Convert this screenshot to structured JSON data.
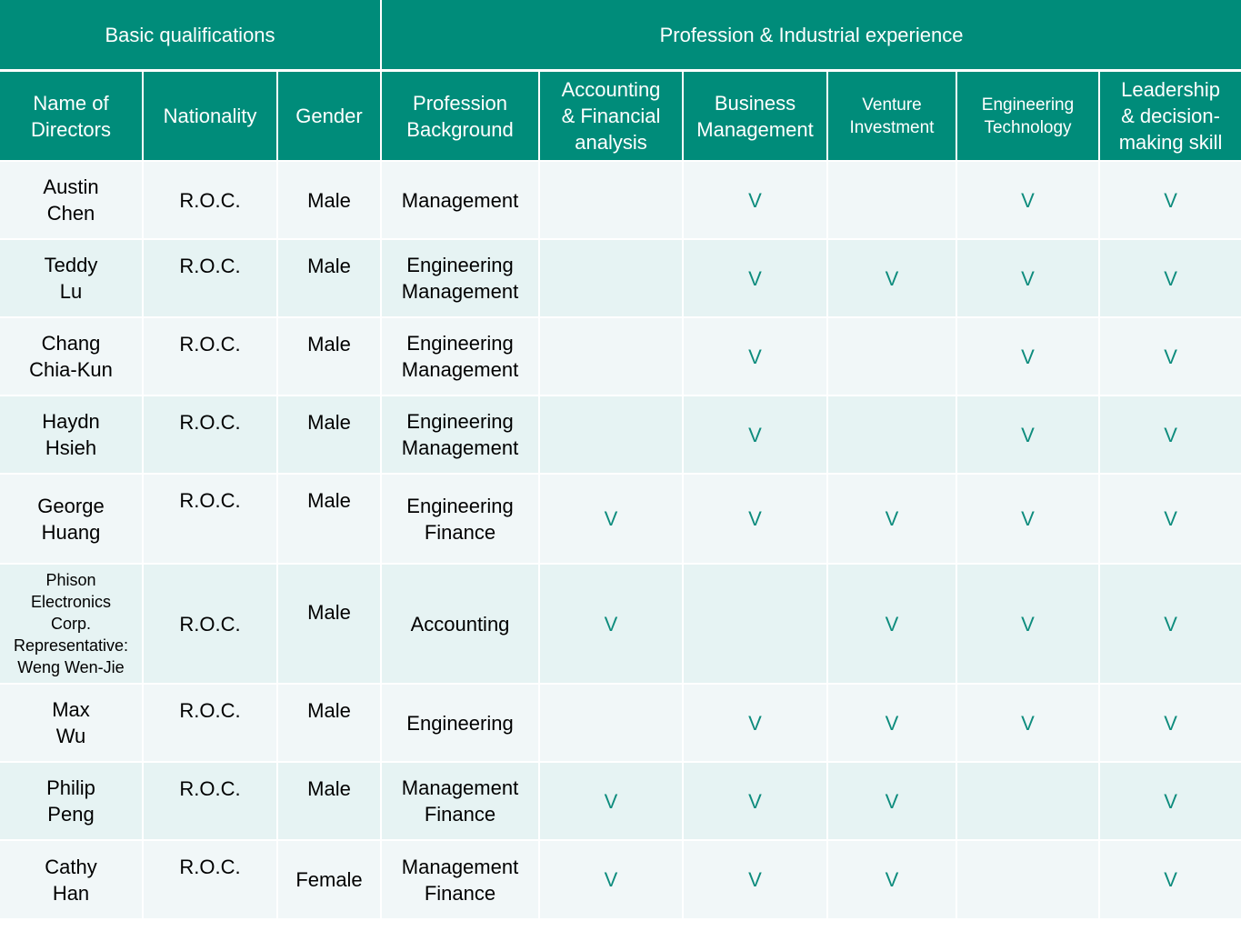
{
  "header": {
    "group_basic": "Basic qualifications",
    "group_profession": "Profession & Industrial experience",
    "columns": [
      "Name of\nDirectors",
      "Nationality",
      "Gender",
      "Profession\nBackground",
      "Accounting\n& Financial\nanalysis",
      "Business\nManagement",
      "Venture\nInvestment",
      "Engineering\nTechnology",
      "Leadership\n& decision-\nmaking skill"
    ]
  },
  "check_mark": "V",
  "rows": [
    {
      "name": "Austin\nChen",
      "nationality": "R.O.C.",
      "gender": "Male",
      "background": "Management",
      "accounting": "",
      "business": "V",
      "venture": "",
      "engineering": "V",
      "leadership": "V"
    },
    {
      "name": "Teddy\nLu",
      "nationality": "R.O.C.",
      "gender": "Male",
      "background": "Engineering\nManagement",
      "accounting": "",
      "business": "V",
      "venture": "V",
      "engineering": "V",
      "leadership": "V"
    },
    {
      "name": "Chang\nChia-Kun",
      "nationality": "R.O.C.",
      "gender": "Male",
      "background": "Engineering\nManagement",
      "accounting": "",
      "business": "V",
      "venture": "",
      "engineering": "V",
      "leadership": "V"
    },
    {
      "name": "Haydn\nHsieh",
      "nationality": "R.O.C.",
      "gender": "Male",
      "background": "Engineering\nManagement",
      "accounting": "",
      "business": "V",
      "venture": "",
      "engineering": "V",
      "leadership": "V"
    },
    {
      "name": "George\nHuang",
      "nationality": "R.O.C.",
      "gender": "Male",
      "background": "Engineering\nFinance",
      "accounting": "V",
      "business": "V",
      "venture": "V",
      "engineering": "V",
      "leadership": "V"
    },
    {
      "name": "Phison\nElectronics\nCorp.\nRepresentative:\nWeng Wen-Jie",
      "nationality": "R.O.C.",
      "gender": "Male",
      "background": "Accounting",
      "accounting": "V",
      "business": "",
      "venture": "V",
      "engineering": "V",
      "leadership": "V"
    },
    {
      "name": "Max\nWu",
      "nationality": "R.O.C.",
      "gender": "Male",
      "background": "Engineering",
      "accounting": "",
      "business": "V",
      "venture": "V",
      "engineering": "V",
      "leadership": "V"
    },
    {
      "name": "Philip\nPeng",
      "nationality": "R.O.C.",
      "gender": "Male",
      "background": "Management\nFinance",
      "accounting": "V",
      "business": "V",
      "venture": "V",
      "engineering": "",
      "leadership": "V"
    },
    {
      "name": "Cathy\nHan",
      "nationality": "R.O.C.",
      "gender": "Female",
      "background": "Management\nFinance",
      "accounting": "V",
      "business": "V",
      "venture": "V",
      "engineering": "",
      "leadership": "V"
    }
  ],
  "colors": {
    "header_bg": "#008C7A",
    "row_light": "#F1F7F8",
    "row_dark": "#E6F3F3",
    "check": "#0E8C7D"
  }
}
